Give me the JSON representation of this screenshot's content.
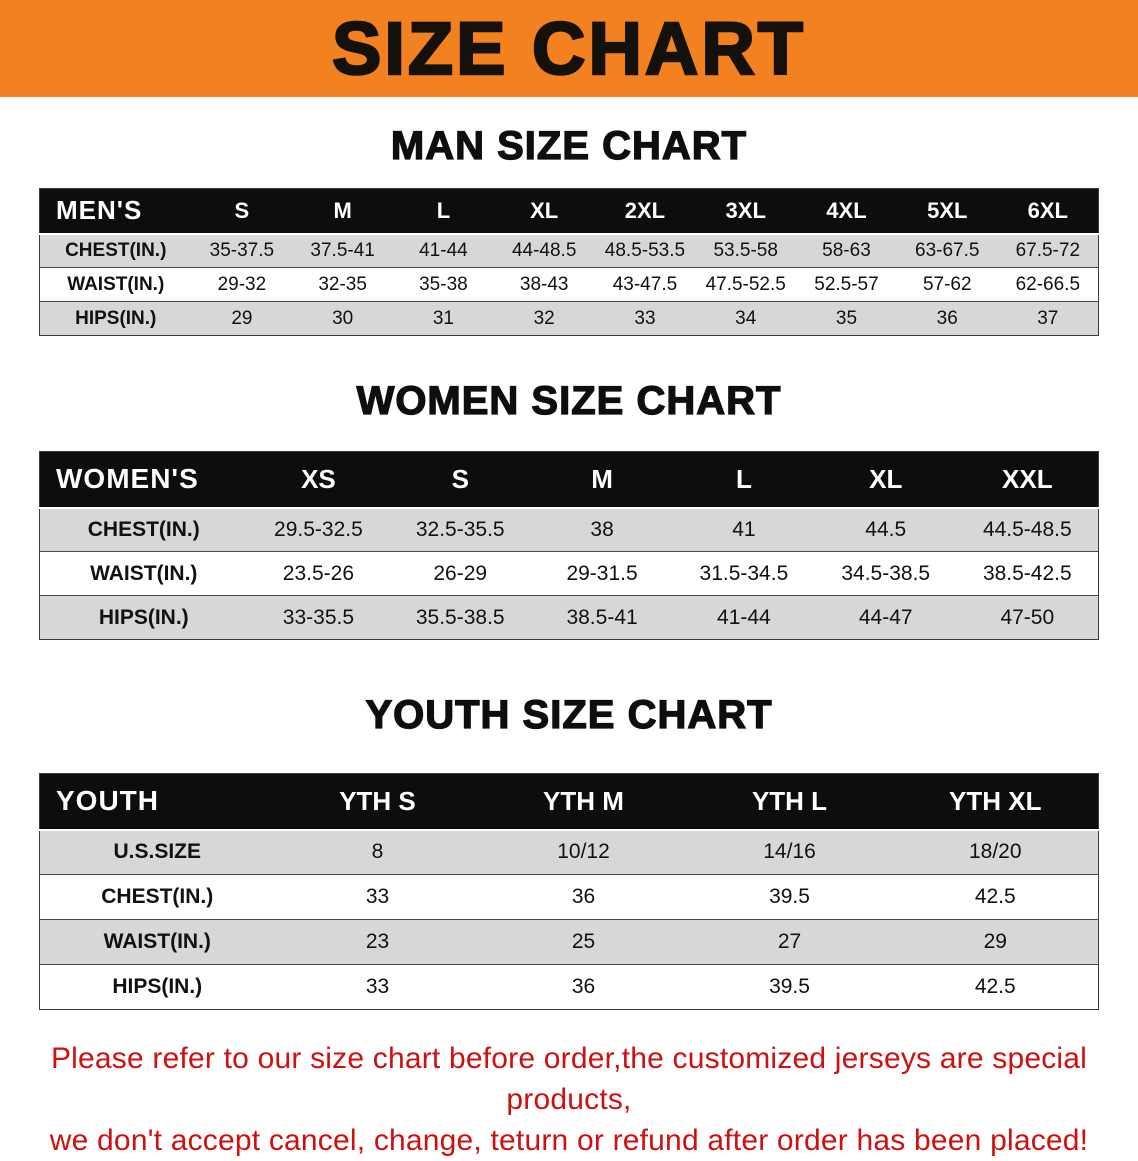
{
  "banner": {
    "title": "SIZE CHART"
  },
  "chart_data": [
    {
      "type": "table",
      "title": "MAN SIZE CHART",
      "columns": [
        "MEN'S",
        "S",
        "M",
        "L",
        "XL",
        "2XL",
        "3XL",
        "4XL",
        "5XL",
        "6XL"
      ],
      "rows": [
        [
          "CHEST(IN.)",
          "35-37.5",
          "37.5-41",
          "41-44",
          "44-48.5",
          "48.5-53.5",
          "53.5-58",
          "58-63",
          "63-67.5",
          "67.5-72"
        ],
        [
          "WAIST(IN.)",
          "29-32",
          "32-35",
          "35-38",
          "38-43",
          "43-47.5",
          "47.5-52.5",
          "52.5-57",
          "57-62",
          "62-66.5"
        ],
        [
          "HIPS(IN.)",
          "29",
          "30",
          "31",
          "32",
          "33",
          "34",
          "35",
          "36",
          "37"
        ]
      ]
    },
    {
      "type": "table",
      "title": "WOMEN SIZE CHART",
      "columns": [
        "WOMEN'S",
        "XS",
        "S",
        "M",
        "L",
        "XL",
        "XXL"
      ],
      "rows": [
        [
          "CHEST(IN.)",
          "29.5-32.5",
          "32.5-35.5",
          "38",
          "41",
          "44.5",
          "44.5-48.5"
        ],
        [
          "WAIST(IN.)",
          "23.5-26",
          "26-29",
          "29-31.5",
          "31.5-34.5",
          "34.5-38.5",
          "38.5-42.5"
        ],
        [
          "HIPS(IN.)",
          "33-35.5",
          "35.5-38.5",
          "38.5-41",
          "41-44",
          "44-47",
          "47-50"
        ]
      ]
    },
    {
      "type": "table",
      "title": "YOUTH SIZE CHART",
      "columns": [
        "YOUTH",
        "YTH S",
        "YTH M",
        "YTH L",
        "YTH XL"
      ],
      "rows": [
        [
          "U.S.SIZE",
          "8",
          "10/12",
          "14/16",
          "18/20"
        ],
        [
          "CHEST(IN.)",
          "33",
          "36",
          "39.5",
          "42.5"
        ],
        [
          "WAIST(IN.)",
          "23",
          "25",
          "27",
          "29"
        ],
        [
          "HIPS(IN.)",
          "33",
          "36",
          "39.5",
          "42.5"
        ]
      ]
    }
  ],
  "footer": {
    "line1": "Please refer to our size chart before order,the customized jerseys are special products,",
    "line2": "we don't accept cancel, change, teturn or refund after order has been placed!"
  },
  "colors": {
    "banner_bg": "#f4811f",
    "table_header_bg": "#0d0d0d",
    "row_alt_bg": "#d7d7d7",
    "notice_text": "#d01010"
  }
}
